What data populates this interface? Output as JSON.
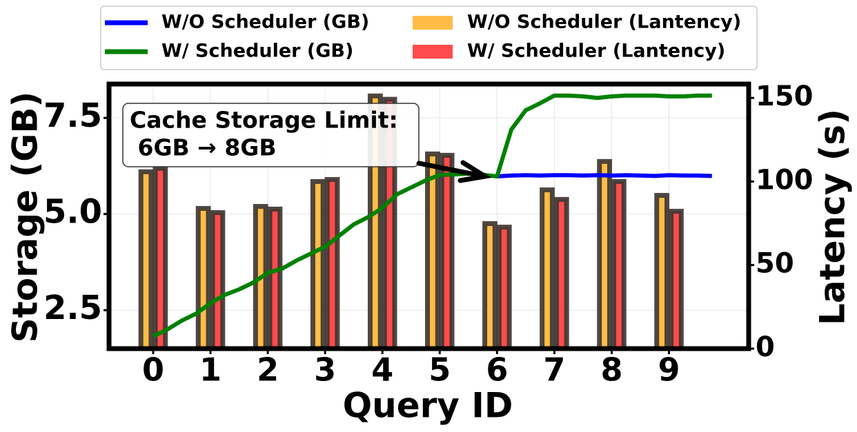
{
  "chart_data": {
    "type": "combo",
    "xlabel": "Query ID",
    "ylabel": "Storage (GB)",
    "y2label": "Latency (s)",
    "annotation": [
      "Cache Storage Limit:",
      " 6GB → 8GB"
    ],
    "xlim": [
      -0.77,
      10.39
    ],
    "xticks": [
      0,
      1,
      2,
      3,
      4,
      5,
      6,
      7,
      8,
      9
    ],
    "ylim": [
      1.5,
      8.38
    ],
    "yticks": [
      2.5,
      {
        "value": 5.0,
        "label": "5.0"
      },
      7.5
    ],
    "y2lim": [
      0,
      158.3
    ],
    "y2ticks": [
      0,
      50,
      100,
      150
    ],
    "grid": true,
    "legend": "top",
    "series": [
      {
        "name": "W/O Scheduler (GB)",
        "type": "line",
        "color": "#0000ff",
        "x": [
          0,
          0.25,
          0.5,
          0.75,
          1,
          1.25,
          1.5,
          1.75,
          2,
          2.25,
          2.5,
          2.75,
          3,
          3.25,
          3.5,
          3.75,
          4,
          4.25,
          4.5,
          4.75,
          5,
          5.25,
          5.5,
          5.75,
          6,
          6.25,
          6.5,
          6.75,
          7,
          7.25,
          7.5,
          7.75,
          8,
          8.25,
          8.5,
          8.75,
          9,
          9.25,
          9.5,
          9.75
        ],
        "values": [
          null,
          null,
          null,
          null,
          null,
          null,
          null,
          null,
          null,
          null,
          null,
          null,
          null,
          null,
          null,
          null,
          null,
          null,
          null,
          null,
          null,
          null,
          null,
          null,
          5.98,
          6.0,
          6.01,
          6.0,
          6.01,
          6.01,
          6.0,
          6.01,
          6.0,
          6.01,
          6.0,
          5.99,
          6.01,
          6.0,
          6.0,
          5.99
        ]
      },
      {
        "name": "W/ Scheduler (GB)",
        "type": "line",
        "color": "#008000",
        "x": [
          0,
          0.25,
          0.5,
          0.75,
          1,
          1.25,
          1.5,
          1.75,
          2,
          2.25,
          2.5,
          2.75,
          3,
          3.25,
          3.5,
          3.75,
          4,
          4.25,
          4.5,
          4.75,
          5,
          5.25,
          5.5,
          5.75,
          6,
          6.25,
          6.5,
          6.75,
          7,
          7.25,
          7.5,
          7.75,
          8,
          8.25,
          8.5,
          8.75,
          9,
          9.25,
          9.5,
          9.75
        ],
        "values": [
          1.82,
          2.0,
          2.23,
          2.41,
          2.68,
          2.9,
          3.04,
          3.22,
          3.47,
          3.58,
          3.79,
          3.97,
          4.15,
          4.44,
          4.73,
          4.92,
          5.16,
          5.51,
          5.69,
          5.87,
          6.02,
          6.03,
          6.05,
          6.02,
          5.98,
          7.2,
          7.7,
          7.88,
          8.08,
          8.08,
          8.06,
          8.02,
          8.06,
          8.08,
          8.08,
          8.08,
          8.06,
          8.06,
          8.08,
          8.08
        ]
      },
      {
        "name": "W/O Scheduler (Lantency)",
        "type": "bar",
        "axis": "y2",
        "color": "#ffbc47",
        "edgecolor": "#3b3430",
        "x": [
          0,
          1,
          2,
          3,
          4,
          5,
          6,
          7,
          8,
          9
        ],
        "values": [
          105.8,
          83.9,
          85.1,
          100,
          151.2,
          116.5,
          74.8,
          95,
          112,
          91.7
        ]
      },
      {
        "name": "W/ Scheduler (Lantency)",
        "type": "bar",
        "axis": "y2",
        "color": "#ff4b4b",
        "edgecolor": "#3b3430",
        "x": [
          0,
          1,
          2,
          3,
          4,
          5,
          6,
          7,
          8,
          9
        ],
        "values": [
          107.9,
          81.4,
          83.5,
          101.2,
          149.2,
          115.7,
          72.7,
          89.3,
          100,
          82.2
        ]
      }
    ]
  }
}
